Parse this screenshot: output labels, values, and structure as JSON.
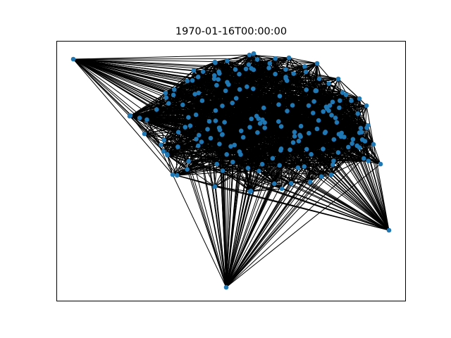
{
  "title": "1970-01-16T00:00:00",
  "colors": {
    "node": "#1f77b4",
    "edge": "#000000",
    "frame": "#000000",
    "background": "#ffffff"
  },
  "chart_data": {
    "type": "network",
    "axes_visible": false,
    "ticks": false,
    "outlier_nodes": [
      "top-left",
      "left",
      "bottom",
      "right"
    ],
    "dense_cluster": true
  }
}
